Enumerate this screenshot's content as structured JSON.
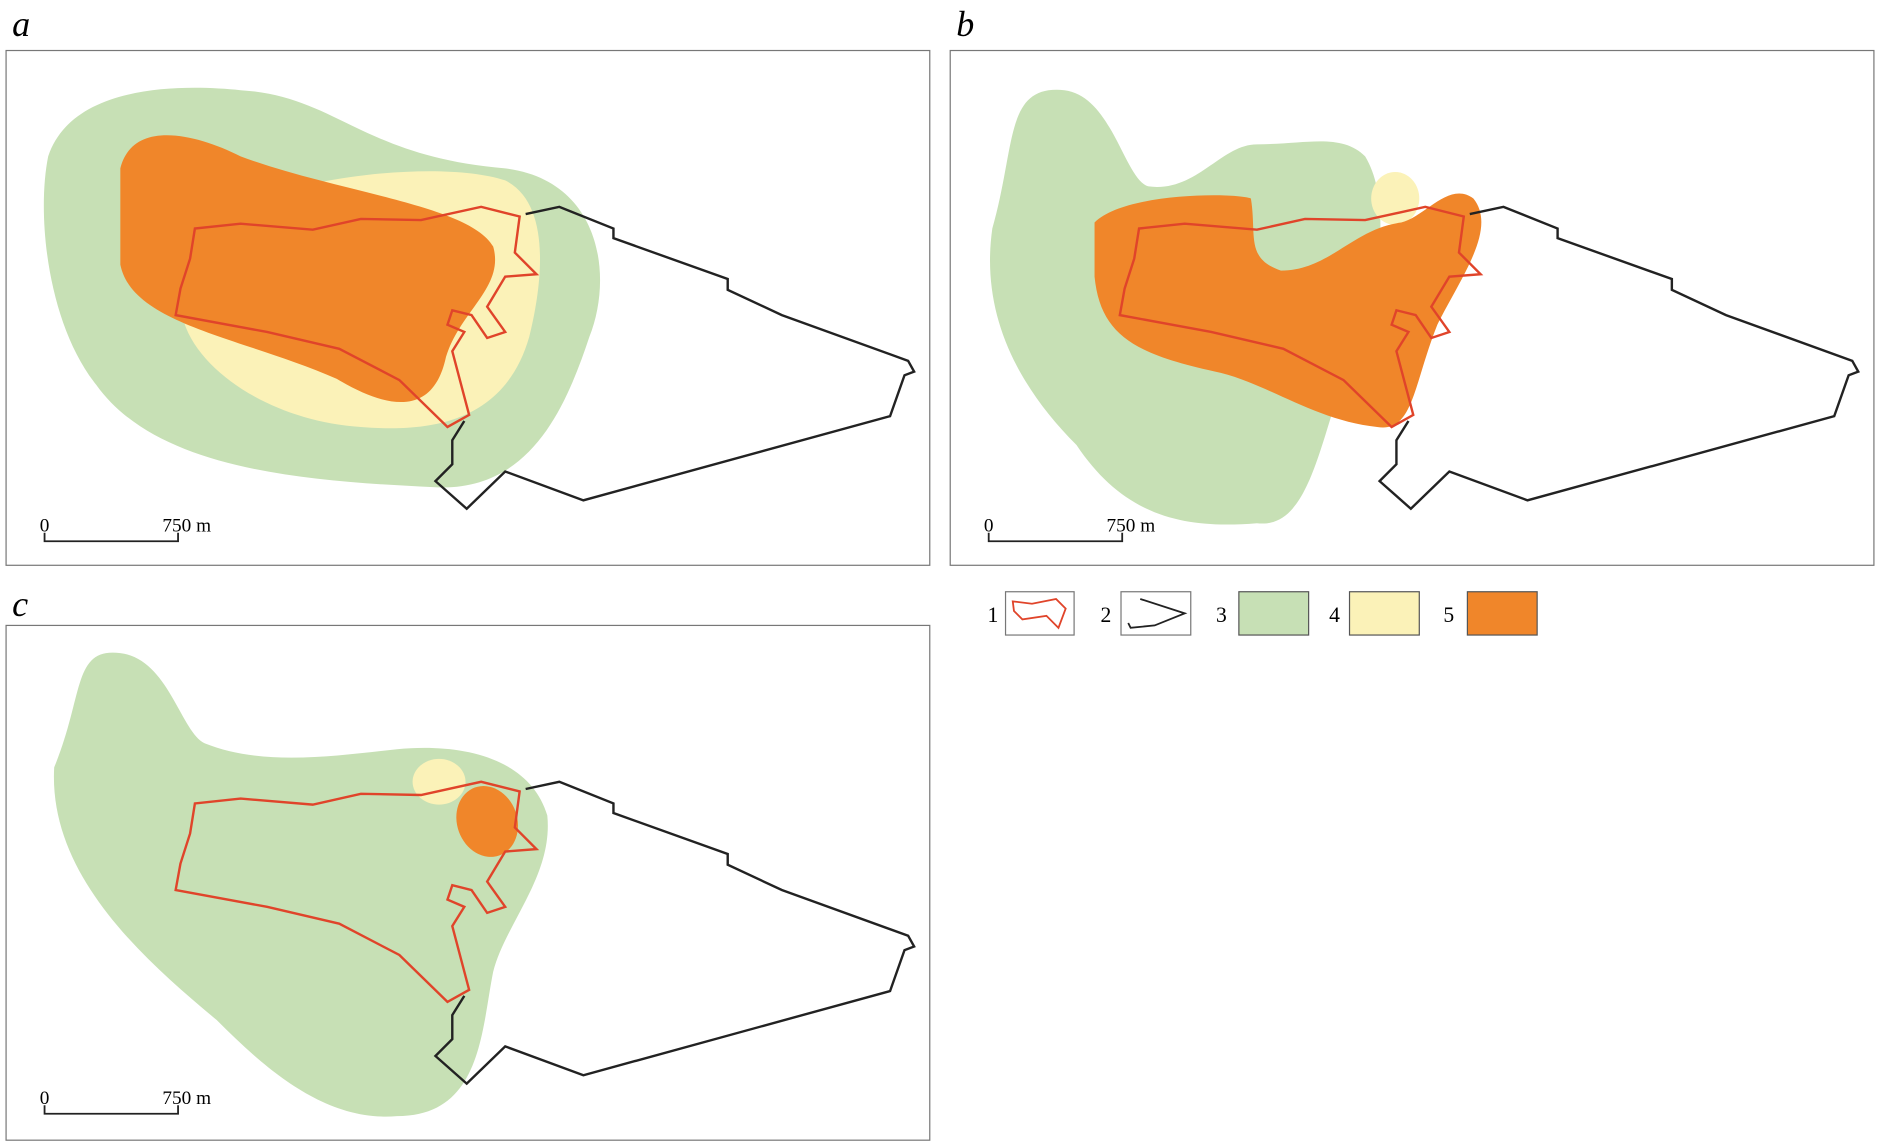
{
  "panels": [
    {
      "label": "a",
      "scale_bar": {
        "start": "0",
        "end": "750 m"
      }
    },
    {
      "label": "b",
      "scale_bar": {
        "start": "0",
        "end": "750 m"
      }
    },
    {
      "label": "c",
      "scale_bar": {
        "start": "0",
        "end": "750 m"
      }
    }
  ],
  "legend": [
    {
      "label": "1"
    },
    {
      "label": "2"
    },
    {
      "label": "3"
    },
    {
      "label": "4"
    },
    {
      "label": "5"
    }
  ]
}
